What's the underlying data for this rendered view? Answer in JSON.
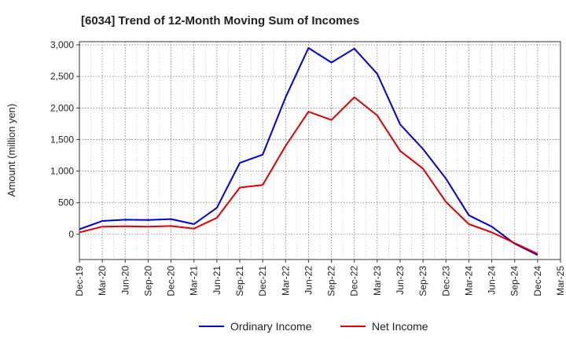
{
  "chart_data": {
    "type": "line",
    "title": "[6034]  Trend of 12-Month Moving Sum of Incomes",
    "xlabel": "",
    "ylabel": "Amount (million yen)",
    "ylim": [
      -400,
      3050
    ],
    "yticks": [
      0,
      500,
      1000,
      1500,
      2000,
      2500,
      3000
    ],
    "ytick_labels": [
      "0",
      "500",
      "1,000",
      "1,500",
      "2,000",
      "2,500",
      "3,000"
    ],
    "x": [
      "Dec-19",
      "Mar-20",
      "Jun-20",
      "Sep-20",
      "Dec-20",
      "Mar-21",
      "Jun-21",
      "Sep-21",
      "Dec-21",
      "Mar-22",
      "Jun-22",
      "Sep-22",
      "Dec-22",
      "Mar-23",
      "Jun-23",
      "Sep-23",
      "Dec-23",
      "Mar-24",
      "Jun-24",
      "Sep-24",
      "Dec-24",
      "Mar-25"
    ],
    "grid": true,
    "legend_position": "bottom",
    "series": [
      {
        "name": "Ordinary Income",
        "color": "#0000cc",
        "values": [
          80,
          210,
          230,
          225,
          240,
          160,
          420,
          1130,
          1260,
          2170,
          2950,
          2720,
          2940,
          2540,
          1740,
          1350,
          880,
          300,
          120,
          -150,
          -330,
          null
        ]
      },
      {
        "name": "Net Income",
        "color": "#dd0000",
        "values": [
          30,
          120,
          125,
          120,
          130,
          90,
          260,
          740,
          780,
          1400,
          1940,
          1810,
          2170,
          1880,
          1320,
          1040,
          510,
          160,
          30,
          -140,
          -310,
          null
        ]
      }
    ]
  }
}
